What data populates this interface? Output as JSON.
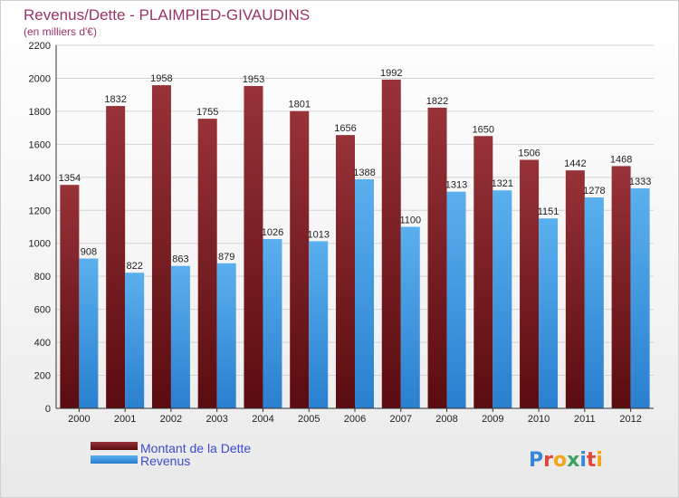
{
  "chart_data": {
    "type": "bar",
    "title": "Revenus/Dette - PLAIMPIED-GIVAUDINS",
    "subtitle": "(en milliers d'€)",
    "categories": [
      "2000",
      "2001",
      "2002",
      "2003",
      "2004",
      "2005",
      "2006",
      "2007",
      "2008",
      "2009",
      "2010",
      "2011",
      "2012"
    ],
    "series": [
      {
        "name": "Montant de la Dette",
        "color": "#7a1f24",
        "values": [
          1354,
          1832,
          1958,
          1755,
          1953,
          1801,
          1656,
          1992,
          1822,
          1650,
          1506,
          1442,
          1468
        ]
      },
      {
        "name": "Revenus",
        "color": "#3f9be0",
        "values": [
          908,
          822,
          863,
          879,
          1026,
          1013,
          1388,
          1100,
          1313,
          1321,
          1151,
          1278,
          1333
        ]
      }
    ],
    "ylim": [
      0,
      2200
    ],
    "yticks": [
      0,
      200,
      400,
      600,
      800,
      1000,
      1200,
      1400,
      1600,
      1800,
      2000,
      2200
    ],
    "grid": true,
    "legend_placement": "bottom-left"
  },
  "logo": {
    "text": "Proxiti",
    "letters": [
      {
        "ch": "P",
        "color": "#3a86d6"
      },
      {
        "ch": "r",
        "color": "#e0473a"
      },
      {
        "ch": "o",
        "color": "#f2a516"
      },
      {
        "ch": "x",
        "color": "#3aa35f"
      },
      {
        "ch": "i",
        "color": "#3a86d6"
      },
      {
        "ch": "t",
        "color": "#e0473a"
      },
      {
        "ch": "i",
        "color": "#f2a516"
      }
    ]
  }
}
